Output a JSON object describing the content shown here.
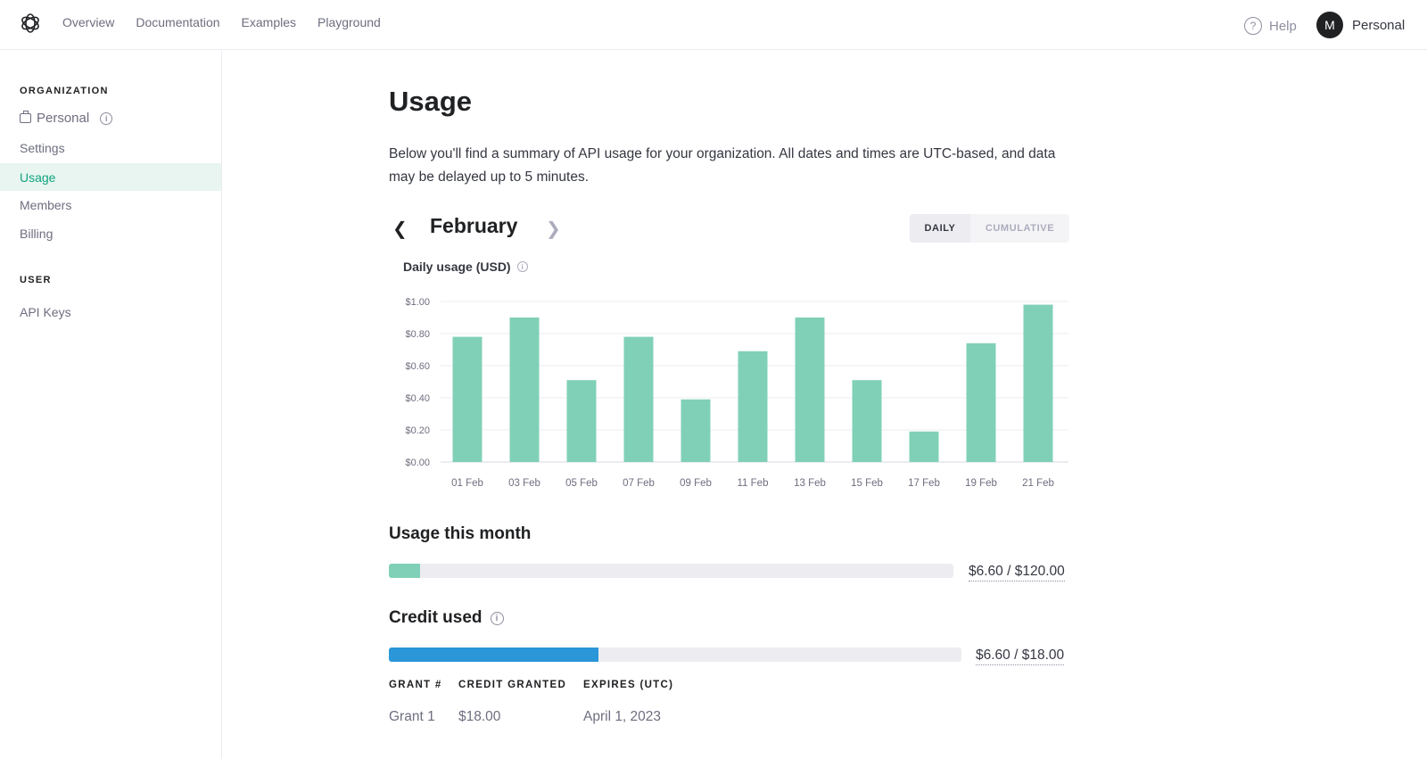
{
  "colors": {
    "accent": "#10a37f",
    "bar": "#80d0b7",
    "credit": "#2b96d8",
    "track": "#ececf1"
  },
  "nav": {
    "items": [
      "Overview",
      "Documentation",
      "Examples",
      "Playground"
    ],
    "help": "Help",
    "avatar_letter": "M",
    "account": "Personal"
  },
  "sidebar": {
    "org_heading": "ORGANIZATION",
    "org_name": "Personal",
    "items": [
      "Settings",
      "Usage",
      "Members",
      "Billing"
    ],
    "active_item": "Usage",
    "user_heading": "USER",
    "user_items": [
      "API Keys"
    ]
  },
  "main": {
    "title": "Usage",
    "description": "Below you'll find a summary of API usage for your organization. All dates and times are UTC-based, and data may be delayed up to 5 minutes.",
    "month": "February",
    "toggle": {
      "daily": "DAILY",
      "cumulative": "CUMULATIVE",
      "selected": "DAILY"
    },
    "chart_title": "Daily usage (USD)"
  },
  "chart_data": {
    "type": "bar",
    "title": "Daily usage (USD)",
    "categories": [
      "01 Feb",
      "03 Feb",
      "05 Feb",
      "07 Feb",
      "09 Feb",
      "11 Feb",
      "13 Feb",
      "15 Feb",
      "17 Feb",
      "19 Feb",
      "21 Feb"
    ],
    "values": [
      0.78,
      0.9,
      0.51,
      0.78,
      0.39,
      0.69,
      0.9,
      0.51,
      0.19,
      0.74,
      0.98
    ],
    "yticks": [
      "$0.00",
      "$0.20",
      "$0.40",
      "$0.60",
      "$0.80",
      "$1.00"
    ],
    "ylim": [
      0,
      1.0
    ],
    "grid": true
  },
  "usage_month": {
    "title": "Usage this month",
    "used": 6.6,
    "limit": 120.0,
    "label": "$6.60 / $120.00"
  },
  "credit": {
    "title": "Credit used",
    "used": 6.6,
    "limit": 18.0,
    "label": "$6.60 / $18.00",
    "columns": [
      "GRANT #",
      "CREDIT GRANTED",
      "EXPIRES (UTC)"
    ],
    "rows": [
      [
        "Grant 1",
        "$18.00",
        "April 1, 2023"
      ]
    ]
  }
}
